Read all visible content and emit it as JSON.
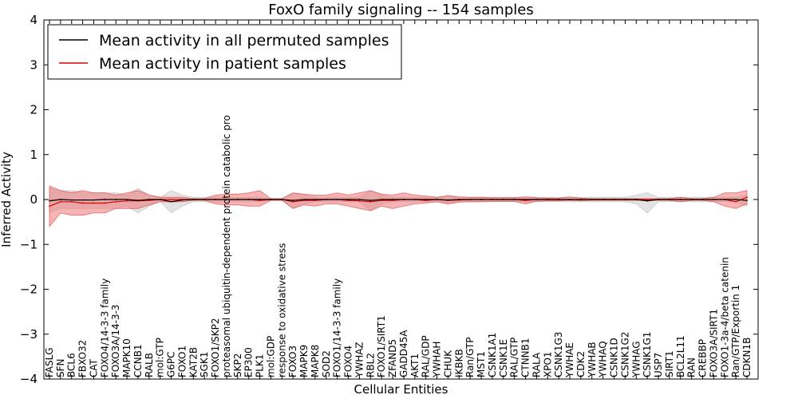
{
  "chart_data": {
    "type": "line",
    "title": "FoxO family signaling -- 154 samples",
    "xlabel": "Cellular Entities",
    "ylabel": "Inferred Activity",
    "ylim": [
      -4,
      4
    ],
    "yticks": [
      {
        "value": 4,
        "label": "4"
      },
      {
        "value": 3,
        "label": "3"
      },
      {
        "value": 2,
        "label": "2"
      },
      {
        "value": 1,
        "label": "1"
      },
      {
        "value": 0,
        "label": "0"
      },
      {
        "value": -1,
        "label": "−1"
      },
      {
        "value": -2,
        "label": "−2"
      },
      {
        "value": -3,
        "label": "−3"
      },
      {
        "value": -4,
        "label": "−4"
      }
    ],
    "categories": [
      "FASLG",
      "SFN",
      "BCL6",
      "FBXO32",
      "CAT",
      "FOXO4/14-3-3 family",
      "FOXO3A/14-3-3",
      "MAPK10",
      "CCNB1",
      "RALB",
      "mol:GTP",
      "G6PC",
      "FOXO1",
      "KAT2B",
      "SGK1",
      "FOXO1/SKP2",
      "proteasomal ubiquitin-dependent protein catabolic pro",
      "SKP2",
      "EP300",
      "PLK1",
      "mol:GDP",
      "response to oxidative stress",
      "FOXO3",
      "MAPK9",
      "MAPK8",
      "SOD2",
      "FOXO1/14-3-3 family",
      "FOXO4",
      "YWHAZ",
      "RBL2",
      "FOXO1/SIRT1",
      "ZFAND5",
      "GADD45A",
      "AKT1",
      "RAL/GDP",
      "YWHAH",
      "CHUK",
      "IKBKB",
      "Ran/GTP",
      "MST1",
      "CSNK1A1",
      "CSNK1E",
      "RAL/GTP",
      "CTNNB1",
      "RALA",
      "XPO1",
      "CSNK1G3",
      "YWHAE",
      "CDK2",
      "YWHAB",
      "YWHAQ",
      "CSNK1D",
      "CSNK1G2",
      "YWHAG",
      "CSNK1G1",
      "USP7",
      "SIRT1",
      "BCL2L11",
      "RAN",
      "CREBBP",
      "FOXO3A/SIRT1",
      "FOXO1-3a-4/beta catenin",
      "Ran/GTP/Exportin 1",
      "CDKN1B"
    ],
    "series": [
      {
        "name": "Mean activity in all permuted samples",
        "color": "#000000",
        "values": [
          -0.03,
          0.0,
          -0.01,
          -0.01,
          -0.01,
          0.0,
          0.0,
          0.0,
          -0.02,
          0.0,
          0.0,
          -0.05,
          -0.01,
          0.0,
          0.0,
          0.0,
          0.0,
          0.0,
          0.0,
          0.0,
          0.0,
          0.0,
          -0.02,
          0.0,
          0.0,
          0.0,
          0.0,
          0.0,
          0.0,
          -0.02,
          0.0,
          0.0,
          0.0,
          0.0,
          0.0,
          0.0,
          -0.01,
          0.0,
          0.0,
          0.0,
          0.0,
          0.0,
          0.0,
          0.0,
          0.0,
          0.0,
          0.0,
          0.0,
          0.0,
          0.0,
          0.0,
          0.0,
          0.0,
          0.0,
          -0.03,
          0.0,
          0.0,
          0.0,
          0.0,
          0.0,
          0.0,
          0.0,
          0.0,
          -0.02
        ],
        "lower": [
          -0.3,
          -0.2,
          -0.2,
          -0.2,
          -0.2,
          -0.2,
          -0.2,
          -0.15,
          -0.3,
          -0.15,
          -0.05,
          -0.3,
          -0.15,
          -0.05,
          -0.05,
          -0.05,
          -0.05,
          -0.05,
          -0.05,
          -0.05,
          -0.02,
          -0.02,
          -0.2,
          -0.1,
          -0.05,
          -0.05,
          -0.05,
          -0.05,
          -0.05,
          -0.25,
          -0.1,
          -0.05,
          -0.05,
          -0.05,
          -0.05,
          -0.05,
          -0.1,
          -0.05,
          -0.05,
          -0.05,
          -0.05,
          -0.05,
          -0.05,
          -0.05,
          -0.05,
          -0.05,
          -0.05,
          -0.05,
          -0.05,
          -0.05,
          -0.05,
          -0.05,
          -0.05,
          -0.1,
          -0.3,
          -0.05,
          -0.05,
          -0.05,
          -0.05,
          -0.05,
          -0.05,
          -0.05,
          -0.05,
          -0.15
        ],
        "upper": [
          0.25,
          0.2,
          0.2,
          0.15,
          0.15,
          0.15,
          0.15,
          0.1,
          0.25,
          0.1,
          0.05,
          0.2,
          0.1,
          0.05,
          0.05,
          0.05,
          0.05,
          0.05,
          0.05,
          0.05,
          0.02,
          0.02,
          0.15,
          0.1,
          0.05,
          0.05,
          0.05,
          0.05,
          0.05,
          0.2,
          0.1,
          0.05,
          0.05,
          0.05,
          0.05,
          0.05,
          0.1,
          0.05,
          0.05,
          0.05,
          0.05,
          0.05,
          0.05,
          0.05,
          0.05,
          0.05,
          0.05,
          0.05,
          0.05,
          0.05,
          0.05,
          0.05,
          0.05,
          0.1,
          0.15,
          0.05,
          0.05,
          0.05,
          0.05,
          0.05,
          0.05,
          0.05,
          0.05,
          0.1
        ]
      },
      {
        "name": "Mean activity in patient samples",
        "color": "#dd0000",
        "values": [
          -0.15,
          -0.05,
          -0.05,
          -0.08,
          -0.08,
          -0.08,
          -0.05,
          -0.03,
          -0.03,
          -0.02,
          0.0,
          0.0,
          0.0,
          0.0,
          0.0,
          0.0,
          0.0,
          0.0,
          0.0,
          -0.02,
          0.0,
          0.0,
          -0.05,
          -0.02,
          -0.02,
          0.0,
          0.0,
          -0.02,
          -0.03,
          -0.05,
          -0.02,
          -0.02,
          0.0,
          0.0,
          -0.02,
          0.0,
          -0.02,
          -0.01,
          0.0,
          0.0,
          0.0,
          0.0,
          0.0,
          -0.02,
          0.0,
          0.0,
          0.0,
          0.0,
          0.0,
          0.0,
          0.0,
          0.0,
          0.0,
          0.0,
          0.0,
          0.0,
          0.0,
          0.0,
          0.0,
          0.0,
          0.0,
          0.0,
          -0.05,
          0.05
        ],
        "lower": [
          -0.6,
          -0.3,
          -0.35,
          -0.35,
          -0.3,
          -0.3,
          -0.2,
          -0.2,
          -0.2,
          -0.12,
          -0.05,
          -0.05,
          -0.05,
          -0.02,
          -0.02,
          -0.1,
          -0.12,
          -0.12,
          -0.15,
          -0.15,
          -0.02,
          -0.02,
          -0.2,
          -0.12,
          -0.15,
          -0.1,
          -0.1,
          -0.15,
          -0.2,
          -0.25,
          -0.15,
          -0.2,
          -0.15,
          -0.1,
          -0.08,
          -0.05,
          -0.1,
          -0.06,
          -0.05,
          -0.05,
          -0.04,
          -0.04,
          -0.04,
          -0.1,
          -0.04,
          -0.03,
          -0.03,
          -0.02,
          -0.03,
          -0.02,
          -0.02,
          -0.02,
          -0.02,
          -0.02,
          -0.02,
          -0.02,
          -0.02,
          -0.05,
          -0.02,
          -0.02,
          -0.05,
          -0.15,
          -0.2,
          -0.1
        ],
        "upper": [
          0.3,
          0.2,
          0.15,
          0.2,
          0.15,
          0.15,
          0.1,
          0.15,
          0.2,
          0.1,
          0.05,
          0.05,
          0.05,
          0.02,
          0.02,
          0.1,
          0.12,
          0.12,
          0.15,
          0.2,
          0.02,
          0.02,
          0.15,
          0.12,
          0.1,
          0.1,
          0.15,
          0.1,
          0.15,
          0.2,
          0.12,
          0.1,
          0.15,
          0.1,
          0.08,
          0.05,
          0.08,
          0.06,
          0.05,
          0.05,
          0.04,
          0.04,
          0.04,
          0.06,
          0.04,
          0.03,
          0.03,
          0.06,
          0.03,
          0.02,
          0.02,
          0.02,
          0.02,
          0.02,
          0.02,
          0.02,
          0.02,
          0.05,
          0.02,
          0.02,
          0.05,
          0.15,
          0.15,
          0.2
        ]
      }
    ],
    "legend": {
      "location": "top-left",
      "entries": [
        "Mean activity in all permuted samples",
        "Mean activity in patient samples"
      ]
    },
    "grid": false
  }
}
